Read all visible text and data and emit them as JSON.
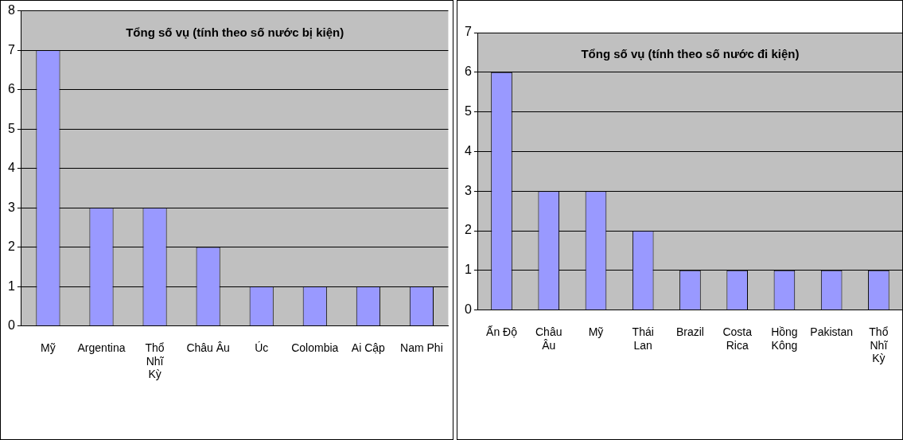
{
  "chart_data": [
    {
      "type": "bar",
      "title": "Tổng số vụ (tính theo số nước bị kiện)",
      "categories": [
        "Mỹ",
        "Argentina",
        "Thổ Nhĩ Kỳ",
        "Châu Âu",
        "Úc",
        "Colombia",
        "Ai Cập",
        "Nam Phi"
      ],
      "values": [
        7,
        3,
        3,
        2,
        1,
        1,
        1,
        1
      ],
      "color": "#9999ff",
      "ylim": [
        0,
        8
      ],
      "yticks": [
        0,
        1,
        2,
        3,
        4,
        5,
        6,
        7,
        8
      ],
      "grid": "y",
      "legend": false
    },
    {
      "type": "bar",
      "title": "Tổng số vụ (tính theo số nước đi kiện)",
      "categories": [
        "Ấn Độ",
        "Châu Âu",
        "Mỹ",
        "Thái Lan",
        "Brazil",
        "Costa Rica",
        "Hồng Kông",
        "Pakistan",
        "Thổ Nhĩ Kỳ"
      ],
      "values": [
        6,
        3,
        3,
        2,
        1,
        1,
        1,
        1,
        1
      ],
      "color": "#9999ff",
      "ylim": [
        0,
        7
      ],
      "yticks": [
        0,
        1,
        2,
        3,
        4,
        5,
        6,
        7
      ],
      "grid": "y",
      "legend": false
    }
  ]
}
